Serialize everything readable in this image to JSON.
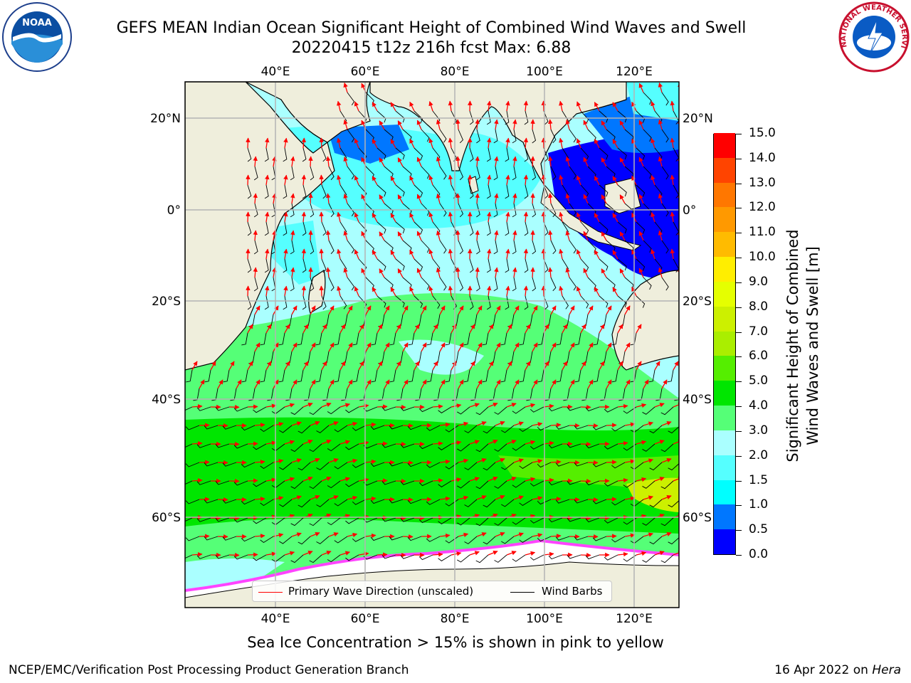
{
  "header": {
    "title_line1": "GEFS MEAN Indian Ocean Significant Height of Combined Wind Waves and Swell",
    "title_line2": "20220415 t12z 216h fcst   Max: 6.88"
  },
  "logos": {
    "left": "noaa-logo",
    "right": "national-weather-service-logo",
    "left_text": "NOAA",
    "right_text": "NATIONAL WEATHER SERVICE"
  },
  "map": {
    "lon_ticks_top": [
      "40°E",
      "60°E",
      "80°E",
      "100°E",
      "120°E"
    ],
    "lon_ticks_bottom": [
      "40°E",
      "60°E",
      "80°E",
      "100°E",
      "120°E"
    ],
    "lat_ticks_left": [
      "20°N",
      "0°",
      "20°S",
      "40°S",
      "60°S"
    ],
    "lat_ticks_right": [
      "20°N",
      "0°",
      "20°S",
      "40°S",
      "60°S"
    ],
    "colors": {
      "land": "#efeedc",
      "ice": "#ffffff",
      "grid": "#b4b4b4",
      "arrow": "#ff0000",
      "barb": "#000000"
    }
  },
  "legend": {
    "wave_label": "Primary Wave Direction (unscaled)",
    "barb_label": "Wind Barbs",
    "wave_color": "#ff0000",
    "barb_color": "#000000"
  },
  "colorbar": {
    "title_line1": "Significant Height of Combined",
    "title_line2": "Wind Waves and Swell [m]",
    "levels": [
      "0.0",
      "0.5",
      "1.0",
      "1.5",
      "2.0",
      "3.0",
      "4.0",
      "5.0",
      "6.0",
      "7.0",
      "8.0",
      "9.0",
      "10.0",
      "11.0",
      "12.0",
      "13.0",
      "14.0",
      "15.0"
    ],
    "colors": [
      "#0000ff",
      "#0077ff",
      "#00ffff",
      "#55ffff",
      "#aaffff",
      "#55ff77",
      "#00e600",
      "#55ee00",
      "#aaee00",
      "#ccf000",
      "#e5ff00",
      "#ffee00",
      "#ffbb00",
      "#ff9900",
      "#ff7700",
      "#ff4400",
      "#ff0000"
    ]
  },
  "notes": {
    "ice": "Sea Ice Concentration > 15% is shown in pink to yellow"
  },
  "footer": {
    "left": "NCEP/EMC/Verification Post Processing Product Generation Branch",
    "right_prefix": "16 Apr 2022 on ",
    "right_host": "Hera"
  }
}
